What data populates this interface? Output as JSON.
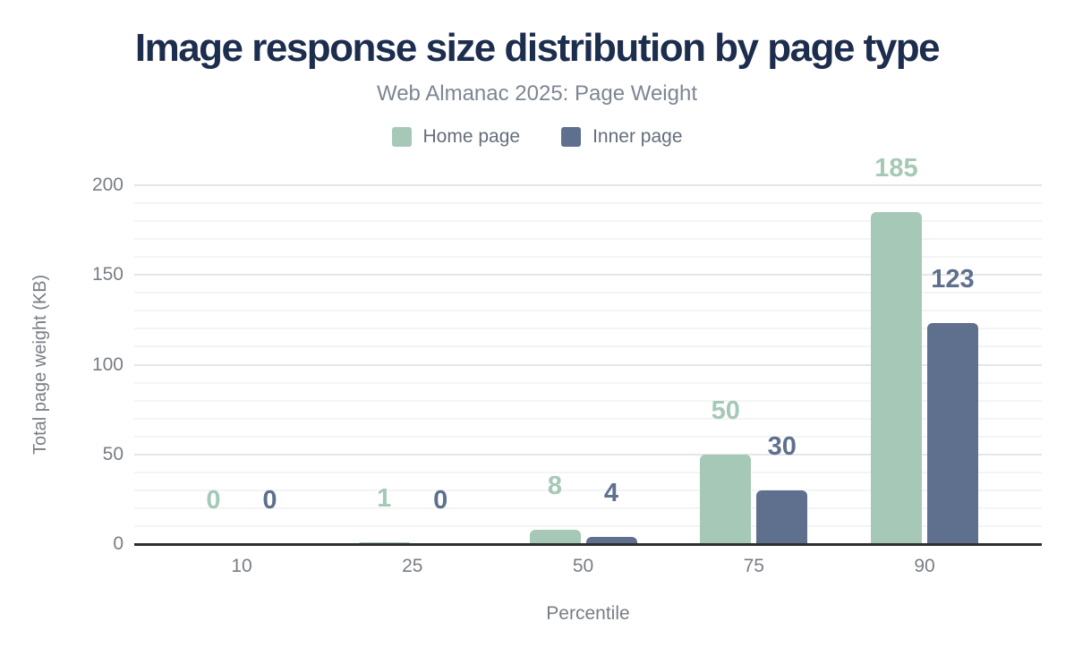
{
  "chart_data": {
    "type": "bar",
    "title": "Image response size distribution by page type",
    "subtitle": "Web Almanac 2025: Page Weight",
    "categories": [
      "10",
      "25",
      "50",
      "75",
      "90"
    ],
    "series": [
      {
        "name": "Home page",
        "color": "#a5c9b6",
        "values": [
          0,
          1,
          8,
          50,
          185
        ]
      },
      {
        "name": "Inner page",
        "color": "#5e708e",
        "values": [
          0,
          0,
          4,
          30,
          123
        ]
      }
    ],
    "xlabel": "Percentile",
    "ylabel": "Total page weight (KB)",
    "ylim": [
      0,
      200
    ],
    "ytick_step": 50,
    "yminor_step": 10,
    "grid": true,
    "legend_position": "top",
    "value_labels": true
  },
  "colors": {
    "background": "#ffffff",
    "title": "#1d2d4e",
    "subtitle": "#7d8693",
    "legend_text": "#646e7b",
    "axis_text": "#797e85",
    "axis_title": "#797e85",
    "axis_line": "#2f2f2f",
    "grid_major": "#e6e6e6",
    "grid_minor": "#f4f4f4"
  }
}
